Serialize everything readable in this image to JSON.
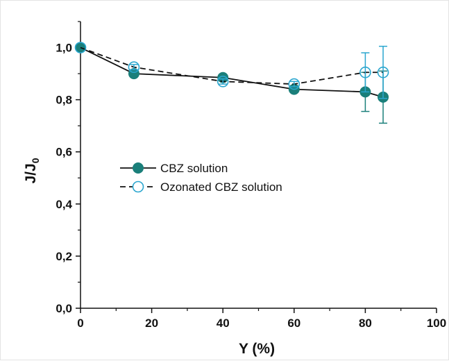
{
  "chart_data": {
    "type": "line",
    "xlabel": "Y (%)",
    "ylabel": {
      "base": "J/J",
      "subscript": "0"
    },
    "xlim": [
      0,
      100
    ],
    "ylim": [
      0.0,
      1.1
    ],
    "x_ticks": [
      0,
      20,
      40,
      60,
      80,
      100
    ],
    "x_tick_labels": [
      "0",
      "20",
      "40",
      "60",
      "80",
      "100"
    ],
    "y_ticks": [
      0.0,
      0.2,
      0.4,
      0.6,
      0.8,
      1.0
    ],
    "y_tick_labels": [
      "0,0",
      "0,2",
      "0,4",
      "0,6",
      "0,8",
      "1,0"
    ],
    "grid": false,
    "legend_position": "center-left",
    "series": [
      {
        "name": "CBZ solution",
        "color": "#1a7f7a",
        "line": "solid",
        "marker": "filled-circle",
        "x": [
          0,
          15,
          40,
          60,
          80,
          85
        ],
        "y": [
          1.0,
          0.9,
          0.885,
          0.84,
          0.83,
          0.81
        ],
        "error": [
          0,
          0.008,
          0.01,
          0.008,
          0.075,
          0.1
        ]
      },
      {
        "name": "Ozonated CBZ solution",
        "color": "#2aa6cf",
        "line": "dashed",
        "marker": "open-circle",
        "x": [
          0,
          15,
          40,
          60,
          80,
          85
        ],
        "y": [
          1.0,
          0.925,
          0.87,
          0.86,
          0.905,
          0.905
        ],
        "error": [
          0,
          0.01,
          0.01,
          0.01,
          0.075,
          0.1
        ]
      }
    ]
  }
}
